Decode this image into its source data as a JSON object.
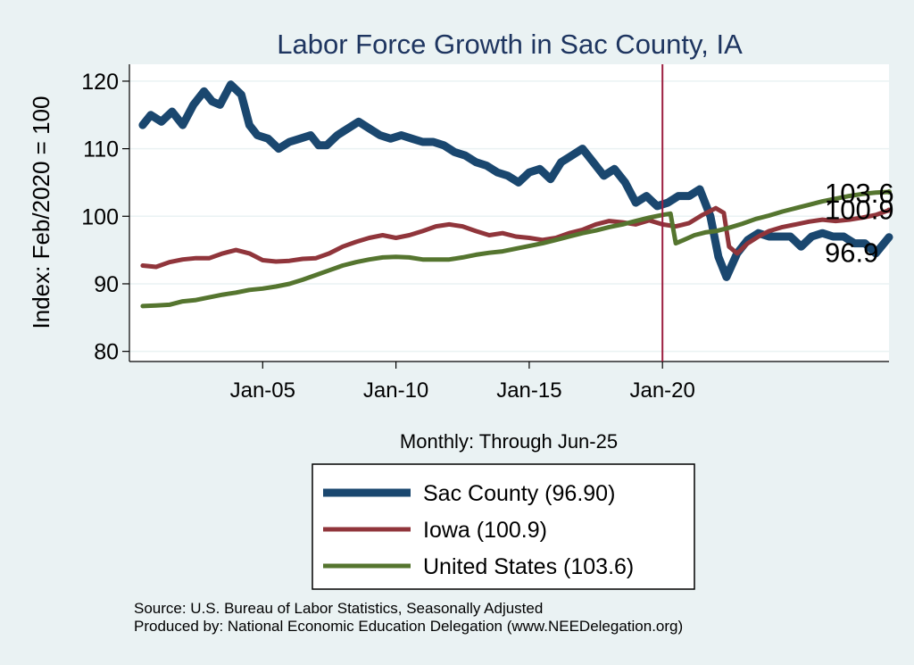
{
  "chart_data": {
    "type": "line",
    "title": "Labor Force Growth in Sac  County, IA",
    "ylabel": "Index: Feb/2020 = 100",
    "xlabel": "Monthly: Through Jun-25",
    "ylim": [
      78.5,
      122.5
    ],
    "xlim": [
      2000.0,
      2028.5
    ],
    "yticks": [
      80,
      90,
      100,
      110,
      120
    ],
    "xticks": [
      {
        "value": 2005.0,
        "label": "Jan-05"
      },
      {
        "value": 2010.0,
        "label": "Jan-10"
      },
      {
        "value": 2015.0,
        "label": "Jan-15"
      },
      {
        "value": 2020.0,
        "label": "Jan-20"
      }
    ],
    "vline": {
      "x": 2020.0,
      "color": "#9c1f3f"
    },
    "series": [
      {
        "name": "Sac  County",
        "legend_label": "Sac  County (96.90)",
        "color": "#1a476f",
        "end_label": "96.9",
        "points": [
          [
            2000.5,
            113.5
          ],
          [
            2000.8,
            115
          ],
          [
            2001.2,
            114
          ],
          [
            2001.6,
            115.5
          ],
          [
            2002,
            113.5
          ],
          [
            2002.4,
            116.5
          ],
          [
            2002.8,
            118.5
          ],
          [
            2003.1,
            117
          ],
          [
            2003.4,
            116.5
          ],
          [
            2003.8,
            119.5
          ],
          [
            2004.2,
            118
          ],
          [
            2004.5,
            113.5
          ],
          [
            2004.8,
            112
          ],
          [
            2005.2,
            111.5
          ],
          [
            2005.6,
            110
          ],
          [
            2006,
            111
          ],
          [
            2006.4,
            111.5
          ],
          [
            2006.8,
            112
          ],
          [
            2007.1,
            110.5
          ],
          [
            2007.4,
            110.5
          ],
          [
            2007.8,
            112
          ],
          [
            2008.2,
            113
          ],
          [
            2008.6,
            114
          ],
          [
            2009,
            113
          ],
          [
            2009.4,
            112
          ],
          [
            2009.8,
            111.5
          ],
          [
            2010.2,
            112
          ],
          [
            2010.6,
            111.5
          ],
          [
            2011,
            111
          ],
          [
            2011.4,
            111
          ],
          [
            2011.8,
            110.5
          ],
          [
            2012.2,
            109.5
          ],
          [
            2012.6,
            109
          ],
          [
            2013,
            108
          ],
          [
            2013.4,
            107.5
          ],
          [
            2013.8,
            106.5
          ],
          [
            2014.2,
            106
          ],
          [
            2014.6,
            105
          ],
          [
            2015,
            106.5
          ],
          [
            2015.4,
            107
          ],
          [
            2015.8,
            105.5
          ],
          [
            2016.2,
            108
          ],
          [
            2016.6,
            109
          ],
          [
            2017,
            110
          ],
          [
            2017.4,
            108
          ],
          [
            2017.8,
            106
          ],
          [
            2018.2,
            107
          ],
          [
            2018.6,
            105
          ],
          [
            2019,
            102
          ],
          [
            2019.4,
            103
          ],
          [
            2019.8,
            101.5
          ],
          [
            2020.2,
            102
          ],
          [
            2020.6,
            103
          ],
          [
            2021,
            103
          ],
          [
            2021.4,
            104
          ],
          [
            2021.8,
            100
          ],
          [
            2022.1,
            94
          ],
          [
            2022.4,
            91
          ],
          [
            2022.8,
            94.5
          ],
          [
            2023.2,
            96.5
          ],
          [
            2023.6,
            97.5
          ],
          [
            2024,
            97
          ],
          [
            2024.4,
            97
          ],
          [
            2024.8,
            97
          ],
          [
            2025.2,
            95.5
          ],
          [
            2025.6,
            97
          ],
          [
            2026,
            97.5
          ],
          [
            2026.4,
            97
          ],
          [
            2026.8,
            97
          ],
          [
            2027.2,
            96
          ],
          [
            2027.6,
            96
          ],
          [
            2028,
            94.5
          ],
          [
            2028.5,
            96.9
          ]
        ]
      },
      {
        "name": "Iowa",
        "legend_label": "Iowa (100.9)",
        "color": "#90353b",
        "end_label": "100.9",
        "points": [
          [
            2000.5,
            92.7
          ],
          [
            2001,
            92.5
          ],
          [
            2001.5,
            93.2
          ],
          [
            2002,
            93.6
          ],
          [
            2002.5,
            93.8
          ],
          [
            2003,
            93.8
          ],
          [
            2003.5,
            94.5
          ],
          [
            2004,
            95
          ],
          [
            2004.5,
            94.5
          ],
          [
            2005,
            93.5
          ],
          [
            2005.5,
            93.3
          ],
          [
            2006,
            93.4
          ],
          [
            2006.5,
            93.7
          ],
          [
            2007,
            93.8
          ],
          [
            2007.5,
            94.5
          ],
          [
            2008,
            95.5
          ],
          [
            2008.5,
            96.2
          ],
          [
            2009,
            96.8
          ],
          [
            2009.5,
            97.2
          ],
          [
            2010,
            96.8
          ],
          [
            2010.5,
            97.2
          ],
          [
            2011,
            97.8
          ],
          [
            2011.5,
            98.5
          ],
          [
            2012,
            98.8
          ],
          [
            2012.5,
            98.5
          ],
          [
            2013,
            97.8
          ],
          [
            2013.5,
            97.2
          ],
          [
            2014,
            97.5
          ],
          [
            2014.5,
            97
          ],
          [
            2015,
            96.8
          ],
          [
            2015.5,
            96.5
          ],
          [
            2016,
            96.8
          ],
          [
            2016.5,
            97.5
          ],
          [
            2017,
            98
          ],
          [
            2017.5,
            98.8
          ],
          [
            2018,
            99.3
          ],
          [
            2018.5,
            99.1
          ],
          [
            2019,
            98.8
          ],
          [
            2019.5,
            99.4
          ],
          [
            2020,
            98.8
          ],
          [
            2020.5,
            98.5
          ],
          [
            2021,
            99
          ],
          [
            2021.5,
            100.2
          ],
          [
            2022,
            101.2
          ],
          [
            2022.3,
            100.5
          ],
          [
            2022.5,
            95.5
          ],
          [
            2022.8,
            94.5
          ],
          [
            2023.2,
            96
          ],
          [
            2023.6,
            97
          ],
          [
            2024,
            97.8
          ],
          [
            2024.5,
            98.4
          ],
          [
            2025,
            98.8
          ],
          [
            2025.5,
            99.2
          ],
          [
            2026,
            99.5
          ],
          [
            2026.5,
            99.3
          ],
          [
            2027,
            99.5
          ],
          [
            2027.5,
            99.8
          ],
          [
            2028,
            100.2
          ],
          [
            2028.5,
            100.9
          ]
        ]
      },
      {
        "name": "United States",
        "legend_label": "United States (103.6)",
        "color": "#55752f",
        "end_label": "103.6",
        "points": [
          [
            2000.5,
            86.7
          ],
          [
            2001,
            86.8
          ],
          [
            2001.5,
            86.9
          ],
          [
            2002,
            87.4
          ],
          [
            2002.5,
            87.6
          ],
          [
            2003,
            88
          ],
          [
            2003.5,
            88.4
          ],
          [
            2004,
            88.7
          ],
          [
            2004.5,
            89.1
          ],
          [
            2005,
            89.3
          ],
          [
            2005.5,
            89.6
          ],
          [
            2006,
            90
          ],
          [
            2006.5,
            90.6
          ],
          [
            2007,
            91.3
          ],
          [
            2007.5,
            92
          ],
          [
            2008,
            92.7
          ],
          [
            2008.5,
            93.2
          ],
          [
            2009,
            93.6
          ],
          [
            2009.5,
            93.9
          ],
          [
            2010,
            94
          ],
          [
            2010.5,
            93.9
          ],
          [
            2011,
            93.6
          ],
          [
            2011.5,
            93.6
          ],
          [
            2012,
            93.6
          ],
          [
            2012.5,
            93.9
          ],
          [
            2013,
            94.3
          ],
          [
            2013.5,
            94.6
          ],
          [
            2014,
            94.8
          ],
          [
            2014.5,
            95.2
          ],
          [
            2015,
            95.6
          ],
          [
            2015.5,
            96
          ],
          [
            2016,
            96.5
          ],
          [
            2016.5,
            97
          ],
          [
            2017,
            97.5
          ],
          [
            2017.5,
            97.9
          ],
          [
            2018,
            98.4
          ],
          [
            2018.5,
            98.8
          ],
          [
            2019,
            99.3
          ],
          [
            2019.5,
            99.8
          ],
          [
            2020,
            100.2
          ],
          [
            2020.3,
            100.4
          ],
          [
            2020.5,
            96
          ],
          [
            2020.8,
            96.5
          ],
          [
            2021.2,
            97.2
          ],
          [
            2021.6,
            97.6
          ],
          [
            2022,
            97.8
          ],
          [
            2022.5,
            98.3
          ],
          [
            2023,
            98.9
          ],
          [
            2023.5,
            99.6
          ],
          [
            2024,
            100.1
          ],
          [
            2024.5,
            100.7
          ],
          [
            2025,
            101.2
          ],
          [
            2025.5,
            101.7
          ],
          [
            2026,
            102.2
          ],
          [
            2026.5,
            102.6
          ],
          [
            2027,
            103
          ],
          [
            2027.5,
            103.3
          ],
          [
            2028,
            103.5
          ],
          [
            2028.5,
            103.6
          ]
        ]
      }
    ],
    "source_lines": [
      "Source: U.S. Bureau of Labor Statistics, Seasonally Adjusted",
      "Produced by: National Economic Education Delegation (www.NEEDelegation.org)"
    ]
  }
}
